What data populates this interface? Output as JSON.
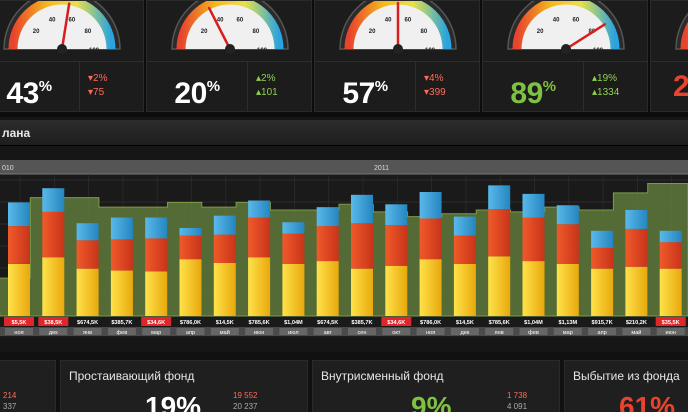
{
  "kpis": [
    {
      "value": "43",
      "unit": "%",
      "delta_pct": "2%",
      "delta_abs": "75",
      "value_color": "white",
      "trend": "down"
    },
    {
      "value": "20",
      "unit": "%",
      "delta_pct": "2%",
      "delta_abs": "101",
      "value_color": "white",
      "trend": "up"
    },
    {
      "value": "57",
      "unit": "%",
      "delta_pct": "4%",
      "delta_abs": "399",
      "value_color": "white",
      "trend": "down"
    },
    {
      "value": "89",
      "unit": "%",
      "delta_pct": "19%",
      "delta_abs": "1334",
      "value_color": "green",
      "trend": "up"
    },
    {
      "value": "2",
      "unit": "",
      "delta_pct": "",
      "delta_abs": "",
      "value_color": "red",
      "trend": ""
    }
  ],
  "gauge_ticks": [
    "20",
    "40",
    "60",
    "80",
    "100"
  ],
  "gauge_needles": [
    55,
    35,
    50,
    82,
    40
  ],
  "chart": {
    "title": "лана",
    "years": [
      "010",
      "2011"
    ],
    "labels": [
      "$5,5K",
      "$38,5K",
      "$674,5K",
      "$385,7K",
      "$34,6K",
      "$786,0K",
      "$14,5K",
      "$785,6K",
      "$1,04M",
      "$674,5K",
      "$385,7K",
      "$34,6K",
      "$786,0K",
      "$14,5K",
      "$785,6K",
      "$1,04M",
      "$1,13M",
      "$915,7K",
      "$210,2K",
      "$35,5K"
    ],
    "label_red": [
      true,
      true,
      false,
      false,
      true,
      false,
      false,
      false,
      false,
      false,
      false,
      true,
      false,
      false,
      false,
      false,
      false,
      false,
      false,
      true
    ],
    "months": [
      "ноя",
      "дек",
      "янв",
      "фев",
      "мар",
      "апр",
      "май",
      "июн",
      "июл",
      "авг",
      "сен",
      "окт",
      "ноя",
      "дек",
      "янв",
      "фев",
      "мар",
      "апр",
      "май",
      "июн"
    ]
  },
  "chart_data": {
    "type": "bar",
    "stacked": true,
    "categories": [
      "ноя",
      "дек",
      "янв",
      "фев",
      "мар",
      "апр",
      "май",
      "июн",
      "июл",
      "авг",
      "сен",
      "окт",
      "ноя",
      "дек",
      "янв",
      "фев",
      "мар",
      "апр",
      "май",
      "июн"
    ],
    "series": [
      {
        "color": "#f2c21a",
        "values": [
          55,
          62,
          50,
          48,
          47,
          60,
          56,
          62,
          55,
          58,
          50,
          53,
          60,
          55,
          63,
          58,
          55,
          50,
          52,
          50
        ]
      },
      {
        "color": "#e84e1e",
        "values": [
          40,
          48,
          30,
          33,
          35,
          25,
          30,
          42,
          32,
          37,
          48,
          43,
          43,
          30,
          50,
          46,
          42,
          22,
          40,
          28
        ]
      },
      {
        "color": "#3a9fd6",
        "values": [
          25,
          25,
          18,
          23,
          22,
          8,
          20,
          18,
          12,
          20,
          30,
          22,
          28,
          20,
          25,
          25,
          20,
          18,
          20,
          12
        ]
      }
    ],
    "background_area": [
      40,
      125,
      125,
      115,
      115,
      120,
      115,
      120,
      112,
      112,
      118,
      110,
      105,
      108,
      112,
      110,
      115,
      112,
      130,
      140
    ],
    "ylim": [
      0,
      150
    ]
  },
  "bottom_tiles": [
    {
      "title": "",
      "pct": "",
      "num1": "214",
      "num2": "337",
      "pct_color": "red"
    },
    {
      "title": "Простаивающий фонд",
      "pct": "19%",
      "num1": "19 552",
      "num2": "20 237",
      "pct_color": "white"
    },
    {
      "title": "Внутрисменный фонд",
      "pct": "9%",
      "num1": "1 738",
      "num2": "4 091",
      "pct_color": "green"
    },
    {
      "title": "Выбытие из фонда",
      "pct": "61%",
      "num1": "",
      "num2": "",
      "pct_color": "red"
    }
  ]
}
